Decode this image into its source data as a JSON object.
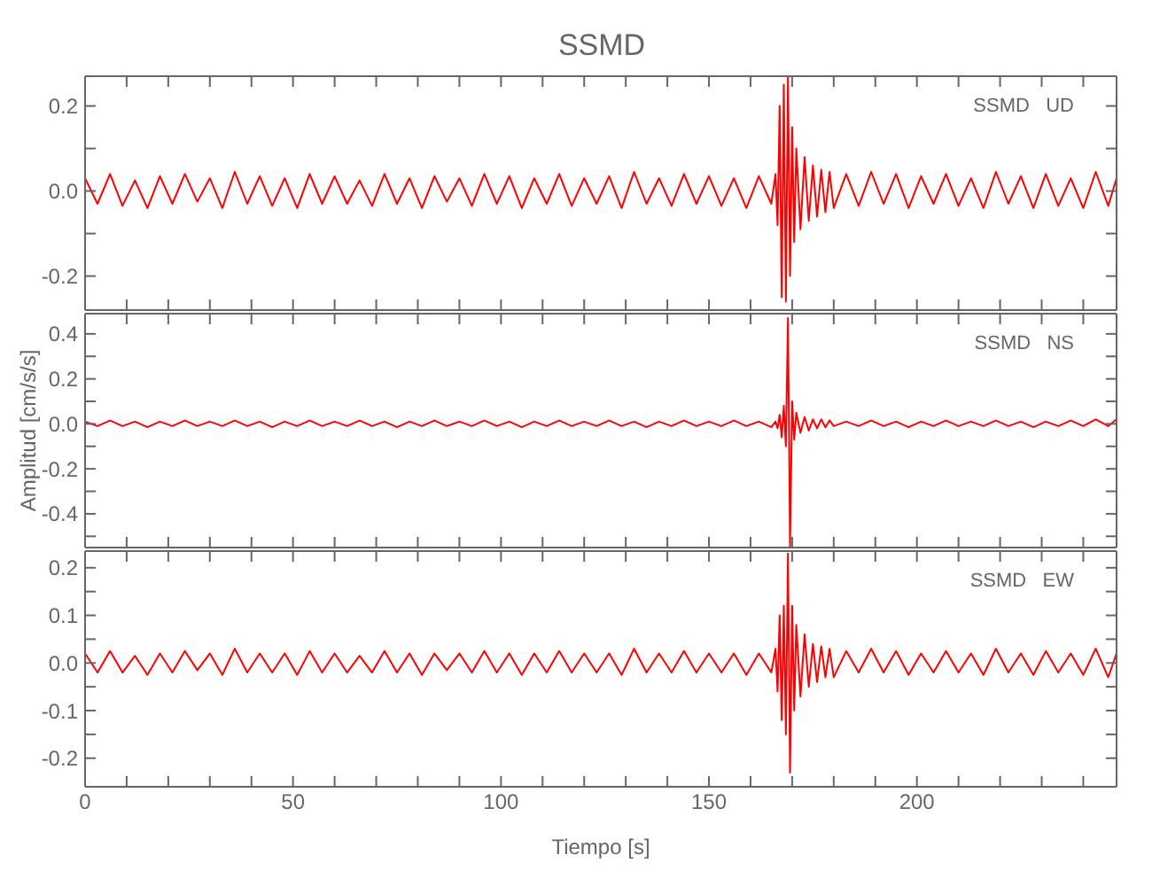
{
  "chart_data": [
    {
      "type": "line",
      "title": "SSMD",
      "annotations": [
        "SSMD   UD"
      ],
      "x": [
        0,
        3,
        6,
        9,
        12,
        15,
        18,
        21,
        24,
        27,
        30,
        33,
        36,
        39,
        42,
        45,
        48,
        51,
        54,
        57,
        60,
        63,
        66,
        69,
        72,
        75,
        78,
        81,
        84,
        87,
        90,
        93,
        96,
        99,
        102,
        105,
        108,
        111,
        114,
        117,
        120,
        123,
        126,
        129,
        132,
        135,
        138,
        141,
        144,
        147,
        150,
        153,
        156,
        159,
        162,
        165,
        166,
        166.5,
        167,
        167.5,
        168,
        168.5,
        169,
        169.5,
        170,
        170.5,
        171,
        172,
        173,
        174,
        175,
        176,
        177,
        178,
        179,
        180,
        183,
        186,
        189,
        192,
        195,
        198,
        201,
        204,
        207,
        210,
        213,
        216,
        219,
        222,
        225,
        228,
        231,
        234,
        237,
        240,
        243,
        246,
        248
      ],
      "series": [
        {
          "color": "#ff0000",
          "values": [
            0.03,
            -0.03,
            0.04,
            -0.035,
            0.025,
            -0.04,
            0.035,
            -0.03,
            0.04,
            -0.025,
            0.03,
            -0.04,
            0.045,
            -0.03,
            0.035,
            -0.035,
            0.03,
            -0.04,
            0.04,
            -0.03,
            0.035,
            -0.03,
            0.025,
            -0.035,
            0.04,
            -0.03,
            0.03,
            -0.04,
            0.035,
            -0.025,
            0.03,
            -0.035,
            0.04,
            -0.03,
            0.035,
            -0.04,
            0.03,
            -0.03,
            0.04,
            -0.035,
            0.03,
            -0.03,
            0.035,
            -0.04,
            0.045,
            -0.03,
            0.03,
            -0.035,
            0.04,
            -0.03,
            0.035,
            -0.035,
            0.03,
            -0.04,
            0.035,
            -0.03,
            0.04,
            -0.08,
            0.2,
            -0.25,
            0.25,
            -0.26,
            0.27,
            -0.2,
            0.15,
            -0.12,
            0.1,
            -0.09,
            0.08,
            -0.07,
            0.06,
            -0.06,
            0.05,
            -0.05,
            0.045,
            -0.04,
            0.04,
            -0.035,
            0.045,
            -0.03,
            0.04,
            -0.04,
            0.035,
            -0.03,
            0.04,
            -0.035,
            0.03,
            -0.04,
            0.045,
            -0.03,
            0.035,
            -0.04,
            0.04,
            -0.035,
            0.03,
            -0.04,
            0.045,
            -0.035,
            0.03
          ]
        }
      ],
      "xlim": [
        0,
        248
      ],
      "xticks": [
        0,
        {
          "value": 10,
          "label": null
        },
        {
          "value": 20,
          "label": null
        },
        {
          "value": 30,
          "label": null
        },
        {
          "value": 40,
          "label": null
        },
        50,
        {
          "value": 60,
          "label": null
        },
        {
          "value": 70,
          "label": null
        },
        {
          "value": 80,
          "label": null
        },
        {
          "value": 90,
          "label": null
        },
        100,
        {
          "value": 110,
          "label": null
        },
        {
          "value": 120,
          "label": null
        },
        {
          "value": 130,
          "label": null
        },
        {
          "value": 140,
          "label": null
        },
        150,
        {
          "value": 160,
          "label": null
        },
        {
          "value": 170,
          "label": null
        },
        {
          "value": 180,
          "label": null
        },
        {
          "value": 190,
          "label": null
        },
        200,
        {
          "value": 210,
          "label": null
        },
        {
          "value": 220,
          "label": null
        },
        {
          "value": 230,
          "label": null
        },
        {
          "value": 240,
          "label": null
        }
      ],
      "ylim": [
        -0.28,
        0.27
      ],
      "yticks": [
        -0.2,
        {
          "value": -0.1,
          "label": null
        },
        {
          "value": 0,
          "label": "0.0"
        },
        {
          "value": 0.1,
          "label": null
        },
        0.2
      ],
      "tick_labels": "y",
      "grid": false,
      "marker": "none",
      "line_style": "solid"
    },
    {
      "type": "line",
      "annotations": [
        "SSMD   NS"
      ],
      "ylabel": "Amplitud [cm/s/s]",
      "x": [
        0,
        3,
        6,
        9,
        12,
        15,
        18,
        21,
        24,
        27,
        30,
        33,
        36,
        39,
        42,
        45,
        48,
        51,
        54,
        57,
        60,
        63,
        66,
        69,
        72,
        75,
        78,
        81,
        84,
        87,
        90,
        93,
        96,
        99,
        102,
        105,
        108,
        111,
        114,
        117,
        120,
        123,
        126,
        129,
        132,
        135,
        138,
        141,
        144,
        147,
        150,
        153,
        156,
        159,
        162,
        165,
        166,
        166.5,
        167,
        167.5,
        168,
        168.5,
        169,
        169.5,
        170,
        170.5,
        171,
        172,
        173,
        174,
        175,
        176,
        177,
        178,
        179,
        180,
        183,
        186,
        189,
        192,
        195,
        198,
        201,
        204,
        207,
        210,
        213,
        216,
        219,
        222,
        225,
        228,
        231,
        234,
        237,
        240,
        243,
        246,
        248
      ],
      "series": [
        {
          "color": "#ff0000",
          "values": [
            0.01,
            -0.01,
            0.015,
            -0.01,
            0.01,
            -0.015,
            0.01,
            -0.01,
            0.015,
            -0.01,
            0.01,
            -0.01,
            0.015,
            -0.01,
            0.01,
            -0.015,
            0.01,
            -0.01,
            0.015,
            -0.01,
            0.01,
            -0.01,
            0.015,
            -0.01,
            0.01,
            -0.015,
            0.01,
            -0.01,
            0.015,
            -0.01,
            0.01,
            -0.01,
            0.015,
            -0.01,
            0.01,
            -0.015,
            0.01,
            -0.01,
            0.015,
            -0.01,
            0.01,
            -0.01,
            0.015,
            -0.01,
            0.01,
            -0.015,
            0.01,
            -0.01,
            0.015,
            -0.01,
            0.01,
            -0.01,
            0.015,
            -0.01,
            0.01,
            -0.015,
            0.01,
            -0.02,
            0.04,
            -0.06,
            0.08,
            -0.1,
            0.47,
            -0.55,
            0.1,
            -0.07,
            0.05,
            -0.04,
            0.03,
            -0.03,
            0.02,
            -0.02,
            0.02,
            -0.015,
            0.015,
            -0.01,
            0.01,
            -0.01,
            0.015,
            -0.01,
            0.01,
            -0.015,
            0.01,
            -0.01,
            0.015,
            -0.01,
            0.01,
            -0.01,
            0.015,
            -0.01,
            0.01,
            -0.015,
            0.01,
            -0.01,
            0.015,
            -0.01,
            0.02,
            -0.01,
            0.02
          ]
        }
      ],
      "xlim": [
        0,
        248
      ],
      "xticks": [
        0,
        {
          "value": 10,
          "label": null
        },
        {
          "value": 20,
          "label": null
        },
        {
          "value": 30,
          "label": null
        },
        {
          "value": 40,
          "label": null
        },
        50,
        {
          "value": 60,
          "label": null
        },
        {
          "value": 70,
          "label": null
        },
        {
          "value": 80,
          "label": null
        },
        {
          "value": 90,
          "label": null
        },
        100,
        {
          "value": 110,
          "label": null
        },
        {
          "value": 120,
          "label": null
        },
        {
          "value": 130,
          "label": null
        },
        {
          "value": 140,
          "label": null
        },
        150,
        {
          "value": 160,
          "label": null
        },
        {
          "value": 170,
          "label": null
        },
        {
          "value": 180,
          "label": null
        },
        {
          "value": 190,
          "label": null
        },
        200,
        {
          "value": 210,
          "label": null
        },
        {
          "value": 220,
          "label": null
        },
        {
          "value": 230,
          "label": null
        },
        {
          "value": 240,
          "label": null
        }
      ],
      "ylim": [
        -0.55,
        0.49
      ],
      "yticks": [
        {
          "value": -0.5,
          "label": null
        },
        -0.4,
        {
          "value": -0.3,
          "label": null
        },
        -0.2,
        {
          "value": -0.1,
          "label": null
        },
        {
          "value": 0,
          "label": "0.0"
        },
        {
          "value": 0.1,
          "label": null
        },
        0.2,
        {
          "value": 0.3,
          "label": null
        },
        0.4
      ],
      "tick_labels": "y",
      "grid": false,
      "marker": "none",
      "line_style": "solid"
    },
    {
      "type": "line",
      "annotations": [
        "SSMD   EW"
      ],
      "xlabel": "Tiempo [s]",
      "x": [
        0,
        3,
        6,
        9,
        12,
        15,
        18,
        21,
        24,
        27,
        30,
        33,
        36,
        39,
        42,
        45,
        48,
        51,
        54,
        57,
        60,
        63,
        66,
        69,
        72,
        75,
        78,
        81,
        84,
        87,
        90,
        93,
        96,
        99,
        102,
        105,
        108,
        111,
        114,
        117,
        120,
        123,
        126,
        129,
        132,
        135,
        138,
        141,
        144,
        147,
        150,
        153,
        156,
        159,
        162,
        165,
        166,
        166.5,
        167,
        167.5,
        168,
        168.5,
        169,
        169.5,
        170,
        170.5,
        171,
        172,
        173,
        174,
        175,
        176,
        177,
        178,
        179,
        180,
        183,
        186,
        189,
        192,
        195,
        198,
        201,
        204,
        207,
        210,
        213,
        216,
        219,
        222,
        225,
        228,
        231,
        234,
        237,
        240,
        243,
        246,
        248
      ],
      "series": [
        {
          "color": "#ff0000",
          "values": [
            0.02,
            -0.02,
            0.025,
            -0.02,
            0.015,
            -0.025,
            0.02,
            -0.02,
            0.025,
            -0.015,
            0.02,
            -0.025,
            0.03,
            -0.02,
            0.02,
            -0.02,
            0.02,
            -0.025,
            0.025,
            -0.02,
            0.02,
            -0.02,
            0.015,
            -0.02,
            0.025,
            -0.02,
            0.02,
            -0.025,
            0.02,
            -0.015,
            0.02,
            -0.02,
            0.025,
            -0.02,
            0.02,
            -0.025,
            0.02,
            -0.02,
            0.025,
            -0.02,
            0.02,
            -0.02,
            0.02,
            -0.025,
            0.03,
            -0.02,
            0.02,
            -0.02,
            0.025,
            -0.02,
            0.02,
            -0.02,
            0.02,
            -0.025,
            0.02,
            -0.02,
            0.03,
            -0.06,
            0.1,
            -0.12,
            0.12,
            -0.15,
            0.23,
            -0.23,
            0.12,
            -0.1,
            0.08,
            -0.07,
            0.06,
            -0.05,
            0.04,
            -0.04,
            0.035,
            -0.03,
            0.03,
            -0.03,
            0.025,
            -0.02,
            0.03,
            -0.02,
            0.025,
            -0.025,
            0.02,
            -0.02,
            0.025,
            -0.02,
            0.02,
            -0.025,
            0.03,
            -0.02,
            0.02,
            -0.025,
            0.025,
            -0.02,
            0.02,
            -0.025,
            0.03,
            -0.03,
            0.02
          ]
        }
      ],
      "xlim": [
        0,
        248
      ],
      "xticks": [
        0,
        {
          "value": 10,
          "label": null
        },
        {
          "value": 20,
          "label": null
        },
        {
          "value": 30,
          "label": null
        },
        {
          "value": 40,
          "label": null
        },
        50,
        {
          "value": 60,
          "label": null
        },
        {
          "value": 70,
          "label": null
        },
        {
          "value": 80,
          "label": null
        },
        {
          "value": 90,
          "label": null
        },
        100,
        {
          "value": 110,
          "label": null
        },
        {
          "value": 120,
          "label": null
        },
        {
          "value": 130,
          "label": null
        },
        {
          "value": 140,
          "label": null
        },
        150,
        {
          "value": 160,
          "label": null
        },
        {
          "value": 170,
          "label": null
        },
        {
          "value": 180,
          "label": null
        },
        {
          "value": 190,
          "label": null
        },
        200,
        {
          "value": 210,
          "label": null
        },
        {
          "value": 220,
          "label": null
        },
        {
          "value": 230,
          "label": null
        },
        {
          "value": 240,
          "label": null
        }
      ],
      "ylim": [
        -0.26,
        0.235
      ],
      "yticks": [
        -0.2,
        {
          "value": -0.15,
          "label": null
        },
        -0.1,
        {
          "value": -0.05,
          "label": null
        },
        {
          "value": 0,
          "label": "0.0"
        },
        {
          "value": 0.05,
          "label": null
        },
        0.1,
        {
          "value": 0.15,
          "label": null
        },
        0.2
      ],
      "grid": false,
      "marker": "none",
      "line_style": "solid"
    }
  ]
}
